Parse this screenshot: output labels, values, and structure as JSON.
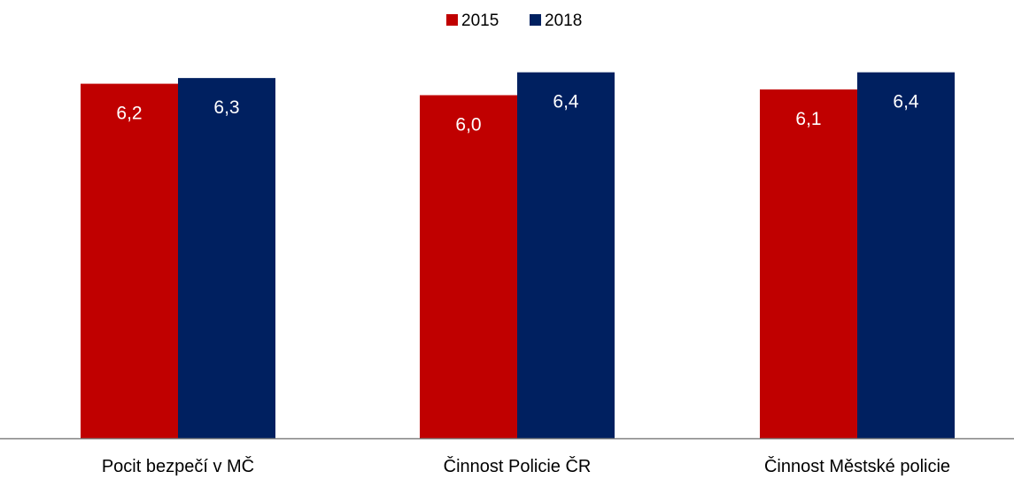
{
  "chart_data": {
    "type": "bar",
    "categories": [
      "Pocit bezpečí v MČ",
      "Činnost Policie ČR",
      "Činnost Městské policie"
    ],
    "series": [
      {
        "name": "2015",
        "color": "#C00000",
        "values": [
          6.2,
          6.0,
          6.1
        ],
        "labels": [
          "6,2",
          "6,0",
          "6,1"
        ]
      },
      {
        "name": "2018",
        "color": "#002060",
        "values": [
          6.3,
          6.4,
          6.4
        ],
        "labels": [
          "6,3",
          "6,4",
          "6,4"
        ]
      }
    ],
    "ylim": [
      0,
      7.2
    ],
    "grid": false,
    "legend_position": "top-center",
    "axis_color": "#808080",
    "label_color": "#FFFFFF",
    "text_color": "#000000"
  }
}
